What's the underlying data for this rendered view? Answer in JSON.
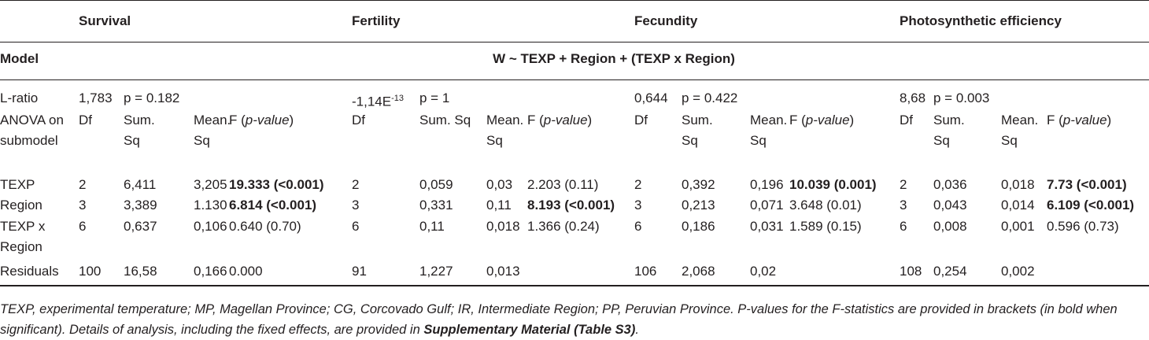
{
  "groups": [
    "Survival",
    "Fertility",
    "Fecundity",
    "Photosynthetic efficiency"
  ],
  "model": {
    "label": "Model",
    "formula": "W ~ TEXP + Region + (TEXP x Region)"
  },
  "l_ratio": {
    "label": "L-ratio",
    "values": [
      {
        "stat": "1,783",
        "p": "p = 0.182"
      },
      {
        "stat": "-1,14E",
        "stat_sup": "-13",
        "p": "p = 1"
      },
      {
        "stat": "0,644",
        "p": "p = 0.422"
      },
      {
        "stat": "8,68",
        "p": "p = 0.003"
      }
    ]
  },
  "anova_header": {
    "label": "ANOVA on submodel",
    "df": "Df",
    "sum_sq": "Sum. Sq",
    "mean_sq": "Mean. Sq",
    "f": [
      "F (",
      "p-value",
      ")"
    ]
  },
  "rows": [
    {
      "label": "TEXP",
      "cells": [
        "2",
        "6,411",
        "3,205",
        "19.333 (<0.001)",
        "2",
        "0,059",
        "0,03",
        "2.203 (0.11)",
        "2",
        "0,392",
        "0,196",
        "10.039 (0.001)",
        "2",
        "0,036",
        "0,018",
        "7.73 (<0.001)"
      ],
      "bold": [
        3,
        11,
        15
      ]
    },
    {
      "label": "Region",
      "cells": [
        "3",
        "3,389",
        "1.130",
        "6.814 (<0.001)",
        "3",
        "0,331",
        "0,11",
        "8.193 (<0.001)",
        "3",
        "0,213",
        "0,071",
        "3.648 (0.01)",
        "3",
        "0,043",
        "0,014",
        "6.109 (<0.001)"
      ],
      "bold": [
        3,
        7,
        15
      ]
    },
    {
      "label": "TEXP x Region",
      "cells": [
        "6",
        "0,637",
        "0,106",
        "0.640 (0.70)",
        "6",
        "0,11",
        "0,018",
        "1.366 (0.24)",
        "6",
        "0,186",
        "0,031",
        "1.589 (0.15)",
        "6",
        "0,008",
        "0,001",
        "0.596 (0.73)"
      ],
      "bold": []
    },
    {
      "label": "Residuals",
      "cells": [
        "100",
        "16,58",
        "0,166",
        "0.000",
        "91",
        "1,227",
        "0,013",
        null,
        "106",
        "2,068",
        "0,02",
        null,
        "108",
        "0,254",
        "0,002",
        null
      ],
      "bold": []
    }
  ],
  "footnote": [
    "TEXP, experimental temperature; MP, Magellan Province; CG, Corcovado Gulf; IR, Intermediate Region; PP, Peruvian Province. P-values for the F-statistics are provided in brackets (in bold when significant). Details of analysis, including the fixed effects, are provided in ",
    "Supplementary Material (Table S3)",
    "."
  ]
}
